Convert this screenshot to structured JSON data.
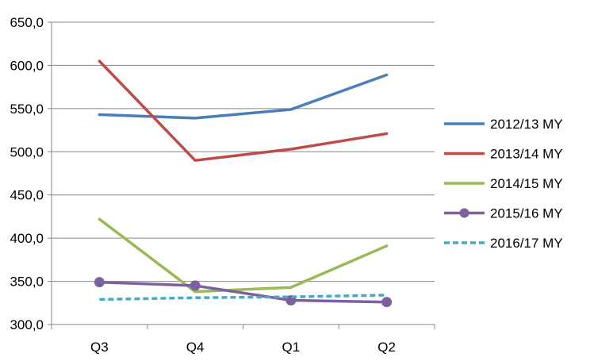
{
  "chart_data": {
    "type": "line",
    "title": "",
    "xlabel": "",
    "ylabel": "",
    "categories": [
      "Q3",
      "Q4",
      "Q1",
      "Q2"
    ],
    "ylim": [
      300,
      650
    ],
    "y_ticks": [
      "300,0",
      "350,0",
      "400,0",
      "450,0",
      "500,0",
      "550,0",
      "600,0",
      "650,0"
    ],
    "grid": true,
    "legend_position": "right",
    "series": [
      {
        "name": "2012/13 MY",
        "values": [
          543,
          539,
          549,
          589
        ],
        "color": "#4a7ebb",
        "dash": false,
        "marker": "none"
      },
      {
        "name": "2013/14 MY",
        "values": [
          605,
          490,
          503,
          521
        ],
        "color": "#be4b48",
        "dash": false,
        "marker": "none"
      },
      {
        "name": "2014/15 MY",
        "values": [
          422,
          338,
          343,
          391
        ],
        "color": "#98b954",
        "dash": false,
        "marker": "none"
      },
      {
        "name": "2015/16 MY",
        "values": [
          349,
          345,
          328,
          326
        ],
        "color": "#7d60a0",
        "dash": false,
        "marker": "circle"
      },
      {
        "name": "2016/17 MY",
        "values": [
          329,
          331,
          332,
          334
        ],
        "color": "#46aac5",
        "dash": true,
        "marker": "none"
      }
    ]
  }
}
